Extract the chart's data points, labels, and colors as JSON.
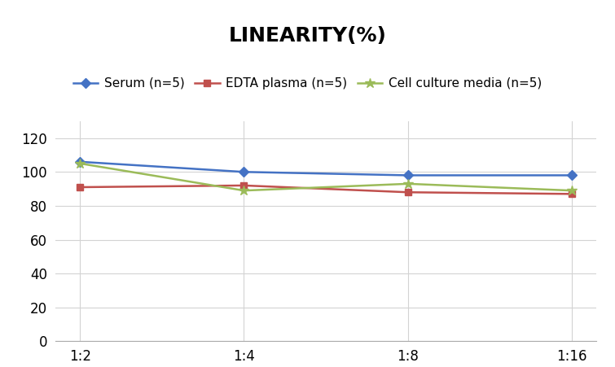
{
  "title": "LINEARITY(%)",
  "x_labels": [
    "1:2",
    "1:4",
    "1:8",
    "1:16"
  ],
  "x_positions": [
    0,
    1,
    2,
    3
  ],
  "series": [
    {
      "label": "Serum (n=5)",
      "values": [
        106,
        100,
        98,
        98
      ],
      "color": "#4472C4",
      "marker": "D",
      "markersize": 6,
      "linewidth": 1.8
    },
    {
      "label": "EDTA plasma (n=5)",
      "values": [
        91,
        92,
        88,
        87
      ],
      "color": "#C0504D",
      "marker": "s",
      "markersize": 6,
      "linewidth": 1.8
    },
    {
      "label": "Cell culture media (n=5)",
      "values": [
        105,
        89,
        93,
        89
      ],
      "color": "#9BBB59",
      "marker": "*",
      "markersize": 9,
      "linewidth": 1.8
    }
  ],
  "ylim": [
    0,
    130
  ],
  "yticks": [
    0,
    20,
    40,
    60,
    80,
    100,
    120
  ],
  "title_fontsize": 18,
  "legend_fontsize": 11,
  "tick_fontsize": 12,
  "background_color": "#ffffff",
  "grid_color": "#d3d3d3"
}
